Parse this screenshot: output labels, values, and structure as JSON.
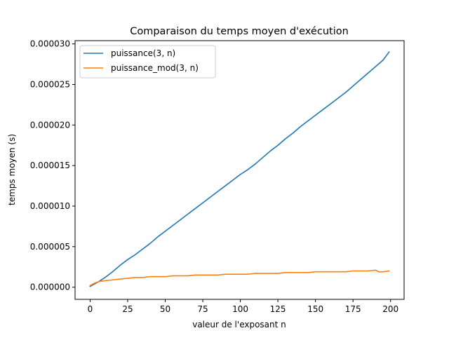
{
  "chart_data": {
    "type": "line",
    "title": "Comparaison du temps moyen d'exécution",
    "xlabel": "valeur de l'exposant n",
    "ylabel": "temps moyen (s)",
    "xlim": [
      -10,
      209
    ],
    "ylim": [
      -1.5e-06,
      3.04e-05
    ],
    "xticks": [
      0,
      25,
      50,
      75,
      100,
      125,
      150,
      175,
      200
    ],
    "xtick_labels": [
      "0",
      "25",
      "50",
      "75",
      "100",
      "125",
      "150",
      "175",
      "200"
    ],
    "yticks": [
      0,
      5e-06,
      1e-05,
      1.5e-05,
      2e-05,
      2.5e-05,
      3e-05
    ],
    "ytick_labels": [
      "0.000000",
      "0.000005",
      "0.000010",
      "0.000015",
      "0.000020",
      "0.000025",
      "0.000030"
    ],
    "grid": false,
    "legend_position": "top-left",
    "series": [
      {
        "name": "puissance(3, n)",
        "color": "#1f77b4",
        "x": [
          0,
          5,
          10,
          15,
          20,
          25,
          30,
          35,
          40,
          45,
          50,
          55,
          60,
          65,
          70,
          75,
          80,
          85,
          90,
          95,
          100,
          105,
          110,
          115,
          120,
          125,
          130,
          135,
          140,
          145,
          150,
          155,
          160,
          165,
          170,
          175,
          180,
          185,
          190,
          195,
          199
        ],
        "y": [
          1e-07,
          6e-07,
          1.2e-06,
          1.9e-06,
          2.7e-06,
          3.4e-06,
          4e-06,
          4.7e-06,
          5.4e-06,
          6.2e-06,
          6.9e-06,
          7.6e-06,
          8.3e-06,
          9e-06,
          9.7e-06,
          1.04e-05,
          1.11e-05,
          1.18e-05,
          1.25e-05,
          1.32e-05,
          1.39e-05,
          1.45e-05,
          1.52e-05,
          1.6e-05,
          1.68e-05,
          1.75e-05,
          1.83e-05,
          1.9e-05,
          1.98e-05,
          2.05e-05,
          2.12e-05,
          2.19e-05,
          2.26e-05,
          2.33e-05,
          2.4e-05,
          2.48e-05,
          2.56e-05,
          2.64e-05,
          2.72e-05,
          2.8e-05,
          2.9e-05
        ]
      },
      {
        "name": "puissance_mod(3, n)",
        "color": "#ff7f0e",
        "x": [
          0,
          3,
          6,
          10,
          15,
          20,
          25,
          30,
          35,
          40,
          45,
          50,
          55,
          60,
          65,
          70,
          75,
          80,
          85,
          90,
          95,
          100,
          105,
          110,
          115,
          120,
          125,
          130,
          135,
          140,
          145,
          150,
          155,
          160,
          165,
          170,
          175,
          180,
          185,
          190,
          192,
          195,
          199
        ],
        "y": [
          2e-07,
          5e-07,
          7e-07,
          8e-07,
          9e-07,
          1e-06,
          1.1e-06,
          1.2e-06,
          1.2e-06,
          1.3e-06,
          1.3e-06,
          1.3e-06,
          1.4e-06,
          1.4e-06,
          1.4e-06,
          1.5e-06,
          1.5e-06,
          1.5e-06,
          1.5e-06,
          1.6e-06,
          1.6e-06,
          1.6e-06,
          1.6e-06,
          1.7e-06,
          1.7e-06,
          1.7e-06,
          1.7e-06,
          1.8e-06,
          1.8e-06,
          1.8e-06,
          1.8e-06,
          1.9e-06,
          1.9e-06,
          1.9e-06,
          1.9e-06,
          1.9e-06,
          2e-06,
          2e-06,
          2e-06,
          2.1e-06,
          1.9e-06,
          1.9e-06,
          2e-06
        ]
      }
    ]
  }
}
